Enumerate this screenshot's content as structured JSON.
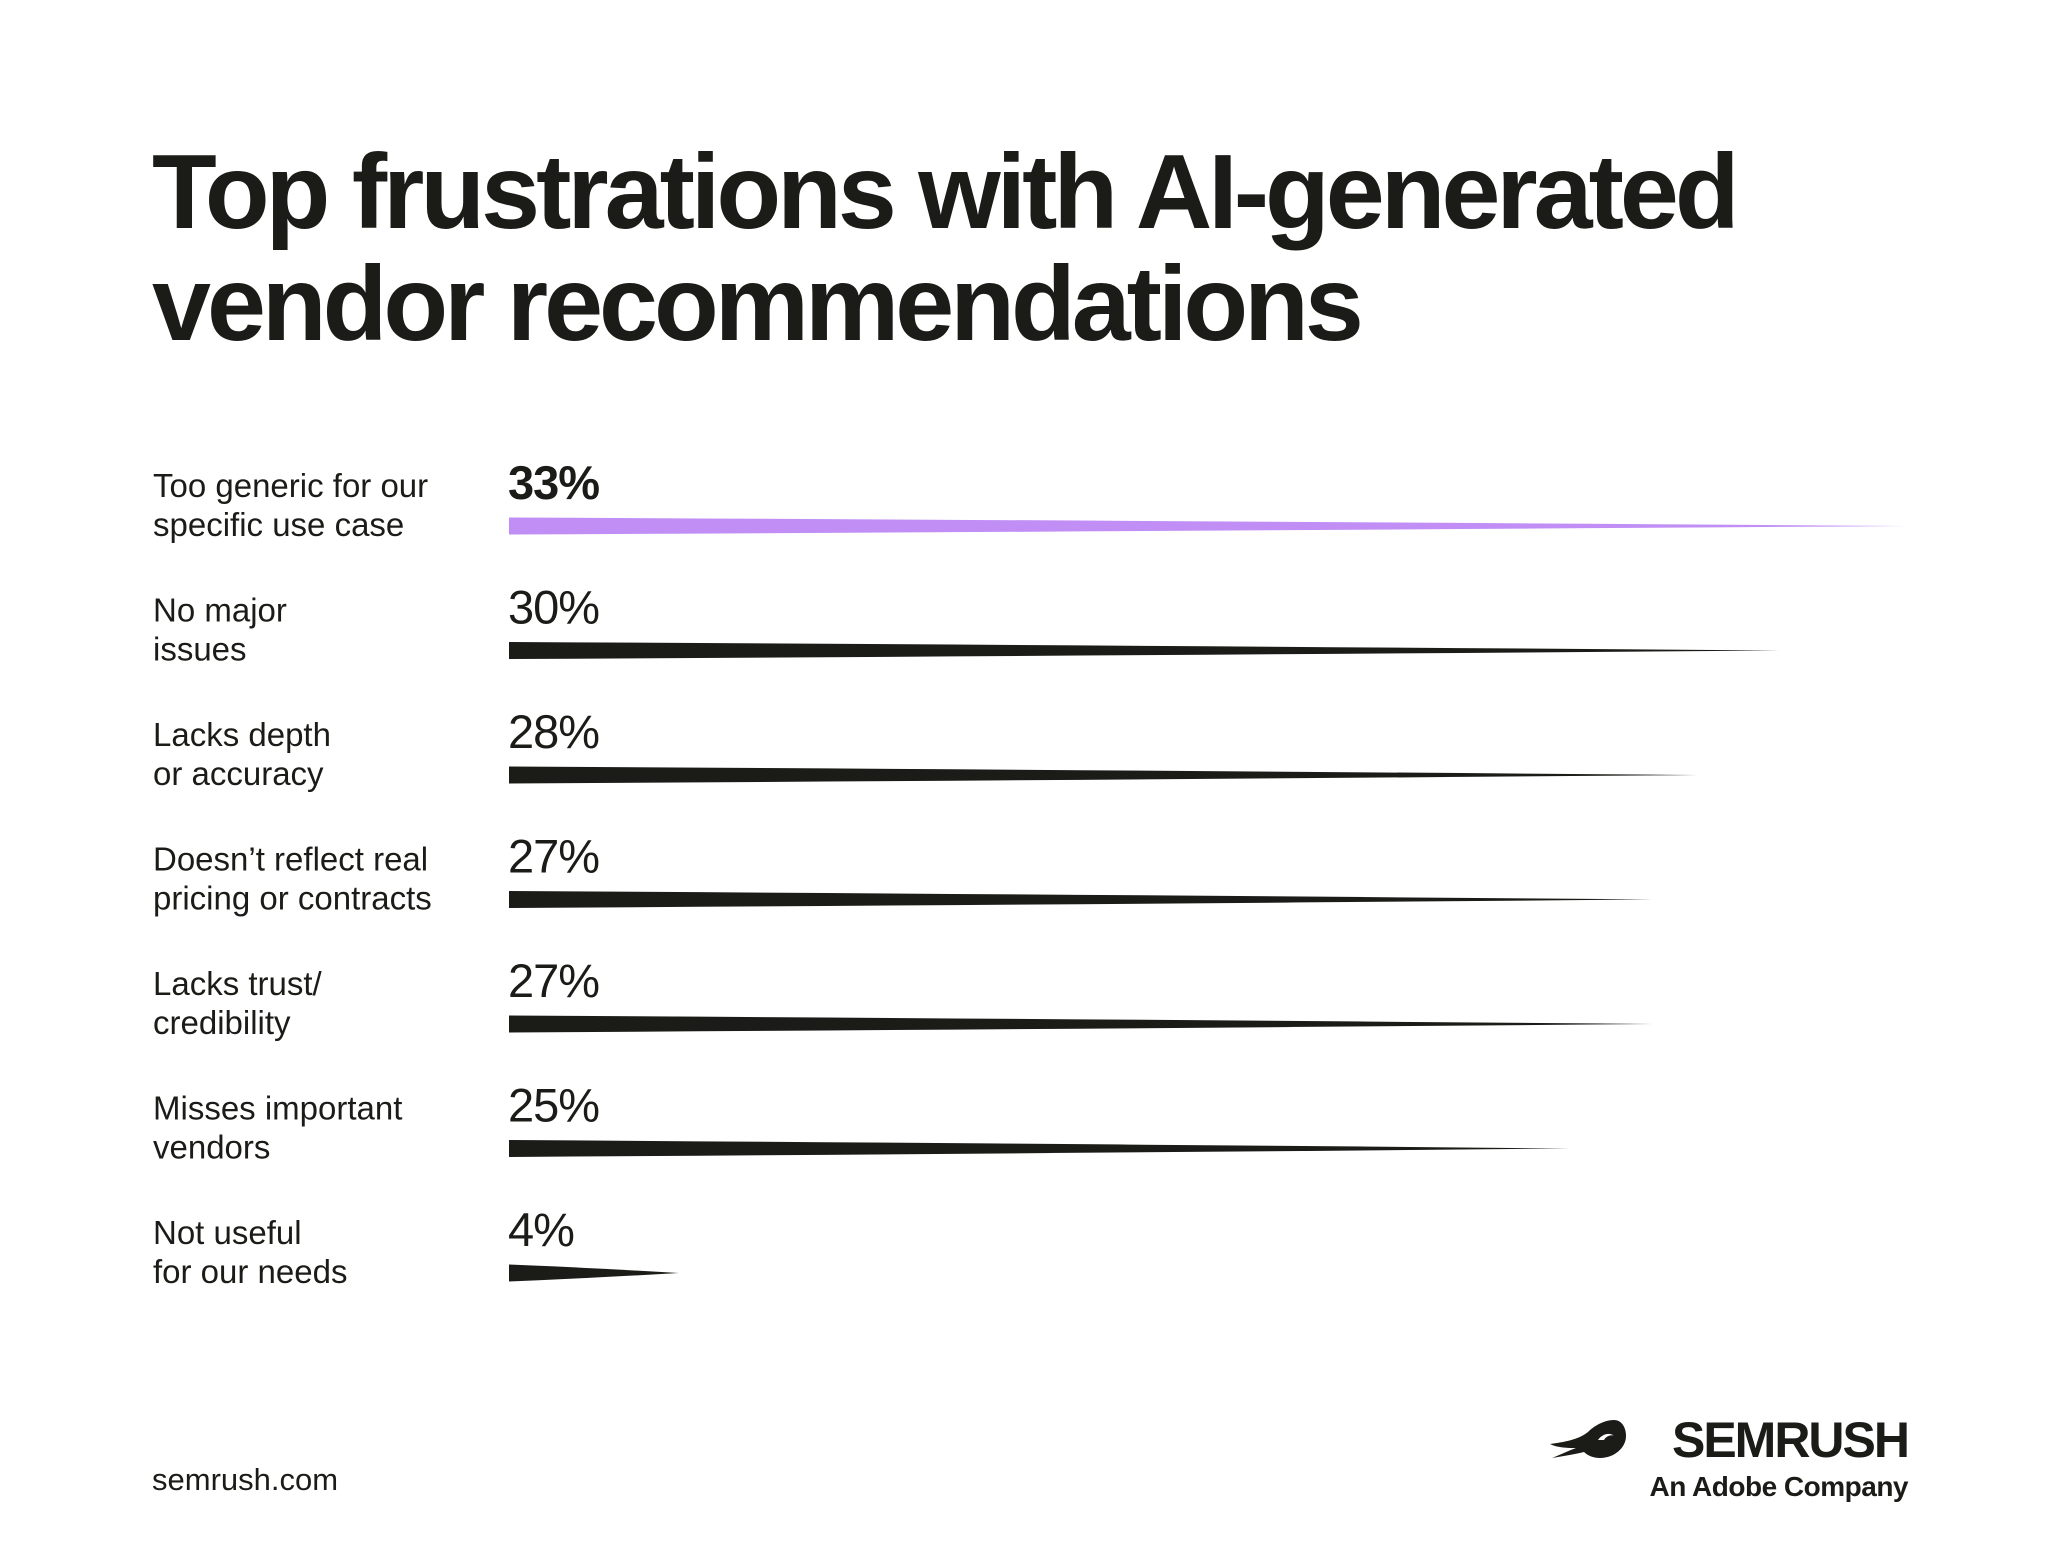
{
  "title_line1": "Top frustrations with AI-generated",
  "title_line2": "vendor recommendations",
  "footer_url": "semrush.com",
  "brand": {
    "name": "SEMRUSH",
    "tagline": "An Adobe Company",
    "icon": "semrush-fire-icon"
  },
  "colors": {
    "highlight": "#c08ef5",
    "bar": "#1b1c17",
    "text": "#1b1c17",
    "background": "#ffffff"
  },
  "chart_data": {
    "type": "bar",
    "orientation": "horizontal",
    "title": "Top frustrations with AI-generated vendor recommendations",
    "categories": [
      [
        "Too generic for our",
        "specific use case"
      ],
      [
        "No major",
        "issues"
      ],
      [
        "Lacks depth",
        "or accuracy"
      ],
      [
        "Doesn’t reflect real",
        "pricing or contracts"
      ],
      [
        "Lacks trust/",
        "credibility"
      ],
      [
        "Misses important",
        "vendors"
      ],
      [
        "Not useful",
        "for our needs"
      ]
    ],
    "values": [
      33,
      30,
      28,
      27,
      27,
      25,
      4
    ],
    "value_labels": [
      "33%",
      "30%",
      "28%",
      "27%",
      "27%",
      "25%",
      "4%"
    ],
    "unit": "%",
    "highlight_index": 0,
    "xlim": [
      0,
      33
    ],
    "grid": false,
    "legend": "none"
  }
}
